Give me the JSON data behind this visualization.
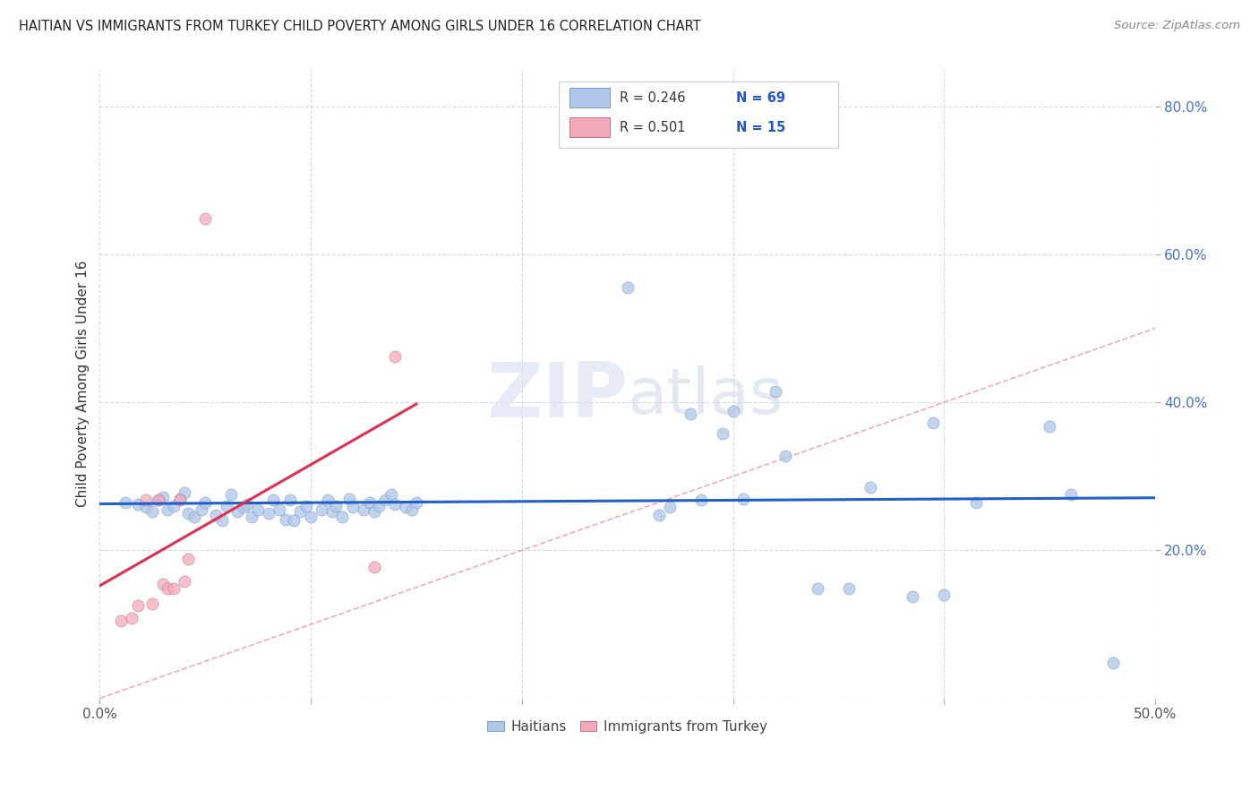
{
  "title": "HAITIAN VS IMMIGRANTS FROM TURKEY CHILD POVERTY AMONG GIRLS UNDER 16 CORRELATION CHART",
  "source": "Source: ZipAtlas.com",
  "ylabel_label": "Child Poverty Among Girls Under 16",
  "xlim": [
    0.0,
    0.5
  ],
  "ylim": [
    0.0,
    0.85
  ],
  "xticks": [
    0.0,
    0.1,
    0.2,
    0.3,
    0.4,
    0.5
  ],
  "yticks": [
    0.0,
    0.2,
    0.4,
    0.6,
    0.8
  ],
  "xticklabels_ends": [
    "0.0%",
    "50.0%"
  ],
  "yticklabels_right": [
    "20.0%",
    "40.0%",
    "60.0%",
    "80.0%"
  ],
  "yticks_right": [
    0.2,
    0.4,
    0.6,
    0.8
  ],
  "legend_r1": "R = 0.246",
  "legend_n1": "N = 69",
  "legend_r2": "R = 0.501",
  "legend_n2": "N = 15",
  "color_haiti": "#aec6e8",
  "color_turkey": "#f2aabb",
  "trendline_haiti_color": "#2060c8",
  "trendline_turkey_color": "#e03050",
  "diagonal_color": "#f0a0b0",
  "watermark_zip": "ZIP",
  "watermark_atlas": "atlas",
  "background_color": "#ffffff",
  "grid_color": "#d8d8e8",
  "haiti_scatter": [
    [
      0.012,
      0.265
    ],
    [
      0.018,
      0.262
    ],
    [
      0.022,
      0.258
    ],
    [
      0.025,
      0.252
    ],
    [
      0.028,
      0.268
    ],
    [
      0.03,
      0.272
    ],
    [
      0.032,
      0.255
    ],
    [
      0.035,
      0.26
    ],
    [
      0.038,
      0.27
    ],
    [
      0.04,
      0.278
    ],
    [
      0.042,
      0.25
    ],
    [
      0.045,
      0.245
    ],
    [
      0.048,
      0.255
    ],
    [
      0.05,
      0.265
    ],
    [
      0.055,
      0.248
    ],
    [
      0.058,
      0.24
    ],
    [
      0.06,
      0.26
    ],
    [
      0.062,
      0.275
    ],
    [
      0.065,
      0.252
    ],
    [
      0.068,
      0.258
    ],
    [
      0.07,
      0.262
    ],
    [
      0.072,
      0.245
    ],
    [
      0.075,
      0.255
    ],
    [
      0.08,
      0.25
    ],
    [
      0.082,
      0.268
    ],
    [
      0.085,
      0.255
    ],
    [
      0.088,
      0.242
    ],
    [
      0.09,
      0.268
    ],
    [
      0.092,
      0.24
    ],
    [
      0.095,
      0.252
    ],
    [
      0.098,
      0.26
    ],
    [
      0.1,
      0.245
    ],
    [
      0.105,
      0.255
    ],
    [
      0.108,
      0.268
    ],
    [
      0.11,
      0.252
    ],
    [
      0.112,
      0.26
    ],
    [
      0.115,
      0.245
    ],
    [
      0.118,
      0.27
    ],
    [
      0.12,
      0.258
    ],
    [
      0.125,
      0.255
    ],
    [
      0.128,
      0.265
    ],
    [
      0.13,
      0.252
    ],
    [
      0.132,
      0.26
    ],
    [
      0.135,
      0.268
    ],
    [
      0.138,
      0.275
    ],
    [
      0.14,
      0.262
    ],
    [
      0.145,
      0.258
    ],
    [
      0.148,
      0.255
    ],
    [
      0.15,
      0.265
    ],
    [
      0.25,
      0.555
    ],
    [
      0.265,
      0.248
    ],
    [
      0.27,
      0.258
    ],
    [
      0.28,
      0.385
    ],
    [
      0.285,
      0.268
    ],
    [
      0.295,
      0.358
    ],
    [
      0.3,
      0.388
    ],
    [
      0.305,
      0.27
    ],
    [
      0.32,
      0.415
    ],
    [
      0.325,
      0.328
    ],
    [
      0.34,
      0.148
    ],
    [
      0.355,
      0.148
    ],
    [
      0.365,
      0.285
    ],
    [
      0.385,
      0.138
    ],
    [
      0.395,
      0.372
    ],
    [
      0.4,
      0.14
    ],
    [
      0.415,
      0.265
    ],
    [
      0.45,
      0.368
    ],
    [
      0.46,
      0.275
    ],
    [
      0.48,
      0.048
    ]
  ],
  "turkey_scatter": [
    [
      0.01,
      0.105
    ],
    [
      0.015,
      0.108
    ],
    [
      0.018,
      0.125
    ],
    [
      0.022,
      0.268
    ],
    [
      0.025,
      0.128
    ],
    [
      0.028,
      0.268
    ],
    [
      0.03,
      0.155
    ],
    [
      0.032,
      0.148
    ],
    [
      0.035,
      0.148
    ],
    [
      0.038,
      0.268
    ],
    [
      0.04,
      0.158
    ],
    [
      0.042,
      0.188
    ],
    [
      0.05,
      0.648
    ],
    [
      0.13,
      0.178
    ],
    [
      0.14,
      0.462
    ]
  ]
}
